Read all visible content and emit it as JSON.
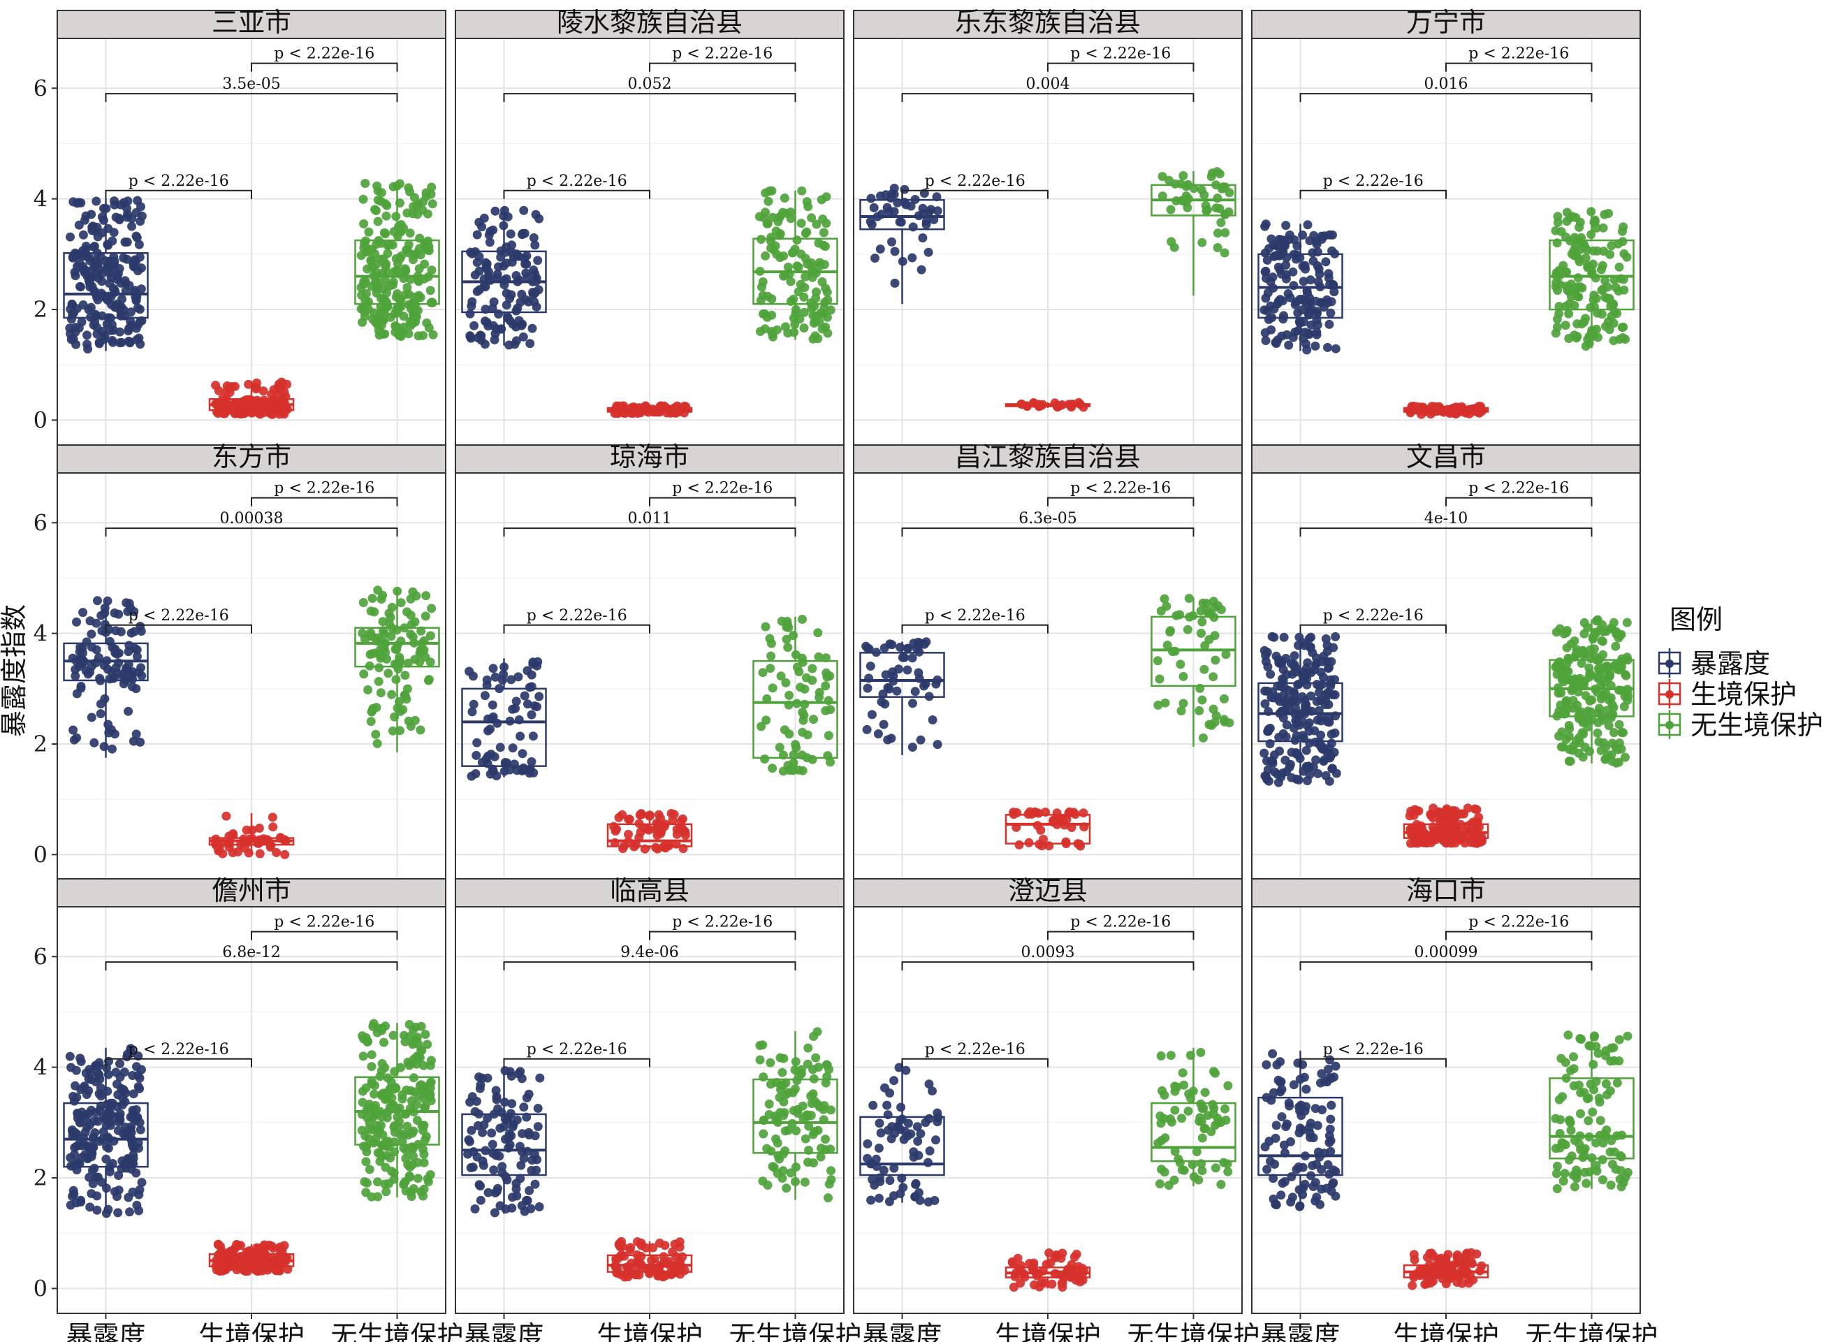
{
  "chart_data": {
    "type": "box-jitter",
    "ylabel": "暴露度指数",
    "ylim": [
      -0.45,
      6.9
    ],
    "yticks": [
      0,
      2,
      4,
      6
    ],
    "categories": [
      "暴露度",
      "生境保护",
      "无生境保护"
    ],
    "legend": {
      "title": "图例",
      "position": "right",
      "entries": [
        {
          "label": "暴露度",
          "color": "#2b3a6b"
        },
        {
          "label": "生境保护",
          "color": "#d7312c"
        },
        {
          "label": "无生境保护",
          "color": "#4ea33a"
        }
      ]
    },
    "colors": [
      "#2b3a6b",
      "#d7312c",
      "#4ea33a"
    ],
    "grid": true,
    "panels": [
      {
        "name": "三亚市",
        "n": [
          220,
          150,
          220
        ],
        "comparisons": [
          "p < 2.22e-16",
          "3.5e-05",
          "p < 2.22e-16"
        ],
        "boxes": [
          [
            1.25,
            1.85,
            2.28,
            3.02,
            4.0
          ],
          [
            0.1,
            0.18,
            0.28,
            0.38,
            0.7
          ],
          [
            1.5,
            2.1,
            2.6,
            3.25,
            4.3
          ]
        ]
      },
      {
        "name": "陵水黎族自治县",
        "n": [
          130,
          80,
          130
        ],
        "comparisons": [
          "p < 2.22e-16",
          "0.052",
          "p < 2.22e-16"
        ],
        "boxes": [
          [
            1.35,
            1.95,
            2.5,
            3.05,
            3.85
          ],
          [
            0.12,
            0.15,
            0.18,
            0.22,
            0.26
          ],
          [
            1.45,
            2.1,
            2.68,
            3.28,
            4.15
          ]
        ]
      },
      {
        "name": "乐东黎族自治县",
        "n": [
          45,
          25,
          45
        ],
        "comparisons": [
          "p < 2.22e-16",
          "0.004",
          "p < 2.22e-16"
        ],
        "boxes": [
          [
            2.1,
            3.45,
            3.68,
            3.98,
            4.2
          ],
          [
            0.22,
            0.25,
            0.27,
            0.29,
            0.32
          ],
          [
            2.25,
            3.7,
            3.98,
            4.25,
            4.5
          ]
        ]
      },
      {
        "name": "万宁市",
        "n": [
          150,
          80,
          150
        ],
        "comparisons": [
          "p < 2.22e-16",
          "0.016",
          "p < 2.22e-16"
        ],
        "boxes": [
          [
            1.25,
            1.85,
            2.4,
            3.0,
            3.55
          ],
          [
            0.1,
            0.15,
            0.18,
            0.22,
            0.25
          ],
          [
            1.3,
            2.0,
            2.6,
            3.25,
            3.85
          ]
        ]
      },
      {
        "name": "东方市",
        "n": [
          110,
          50,
          110
        ],
        "comparisons": [
          "p < 2.22e-16",
          "0.00038",
          "p < 2.22e-16"
        ],
        "boxes": [
          [
            1.75,
            3.15,
            3.5,
            3.82,
            4.6
          ],
          [
            0.0,
            0.18,
            0.25,
            0.3,
            0.75
          ],
          [
            1.85,
            3.4,
            3.82,
            4.1,
            4.8
          ]
        ]
      },
      {
        "name": "琼海市",
        "n": [
          75,
          60,
          75
        ],
        "comparisons": [
          "p < 2.22e-16",
          "0.011",
          "p < 2.22e-16"
        ],
        "boxes": [
          [
            1.4,
            1.6,
            2.4,
            3.0,
            3.55
          ],
          [
            0.1,
            0.15,
            0.25,
            0.55,
            0.75
          ],
          [
            1.5,
            1.75,
            2.75,
            3.5,
            4.3
          ]
        ]
      },
      {
        "name": "昌江黎族自治县",
        "n": [
          55,
          40,
          55
        ],
        "comparisons": [
          "p < 2.22e-16",
          "6.3e-05",
          "p < 2.22e-16"
        ],
        "boxes": [
          [
            1.8,
            2.85,
            3.15,
            3.65,
            3.85
          ],
          [
            0.15,
            0.2,
            0.55,
            0.72,
            0.78
          ],
          [
            1.95,
            3.05,
            3.7,
            4.3,
            4.65
          ]
        ]
      },
      {
        "name": "文昌市",
        "n": [
          220,
          150,
          220
        ],
        "comparisons": [
          "p < 2.22e-16",
          "4e-10",
          "p < 2.22e-16"
        ],
        "boxes": [
          [
            1.3,
            2.05,
            2.55,
            3.1,
            3.95
          ],
          [
            0.2,
            0.3,
            0.4,
            0.55,
            0.85
          ],
          [
            1.65,
            2.5,
            3.0,
            3.52,
            4.25
          ]
        ]
      },
      {
        "name": "儋州市",
        "n": [
          220,
          150,
          220
        ],
        "comparisons": [
          "p < 2.22e-16",
          "6.8e-12",
          "p < 2.22e-16"
        ],
        "boxes": [
          [
            1.35,
            2.2,
            2.7,
            3.35,
            4.35
          ],
          [
            0.3,
            0.4,
            0.5,
            0.62,
            0.8
          ],
          [
            1.65,
            2.6,
            3.2,
            3.82,
            4.8
          ]
        ]
      },
      {
        "name": "临高县",
        "n": [
          110,
          90,
          110
        ],
        "comparisons": [
          "p < 2.22e-16",
          "9.4e-06",
          "p < 2.22e-16"
        ],
        "boxes": [
          [
            1.35,
            2.05,
            2.5,
            3.15,
            4.0
          ],
          [
            0.2,
            0.3,
            0.42,
            0.6,
            0.85
          ],
          [
            1.6,
            2.45,
            3.0,
            3.78,
            4.65
          ]
        ]
      },
      {
        "name": "澄迈县",
        "n": [
          70,
          60,
          70
        ],
        "comparisons": [
          "p < 2.22e-16",
          "0.0093",
          "p < 2.22e-16"
        ],
        "boxes": [
          [
            1.55,
            2.05,
            2.25,
            3.1,
            4.1
          ],
          [
            0.0,
            0.2,
            0.28,
            0.38,
            0.65
          ],
          [
            1.85,
            2.3,
            2.55,
            3.35,
            4.35
          ]
        ]
      },
      {
        "name": "海口市",
        "n": [
          110,
          90,
          110
        ],
        "comparisons": [
          "p < 2.22e-16",
          "0.00099",
          "p < 2.22e-16"
        ],
        "boxes": [
          [
            1.45,
            2.05,
            2.4,
            3.45,
            4.3
          ],
          [
            0.05,
            0.2,
            0.3,
            0.42,
            0.65
          ],
          [
            1.8,
            2.35,
            2.75,
            3.8,
            4.6
          ]
        ]
      }
    ]
  }
}
